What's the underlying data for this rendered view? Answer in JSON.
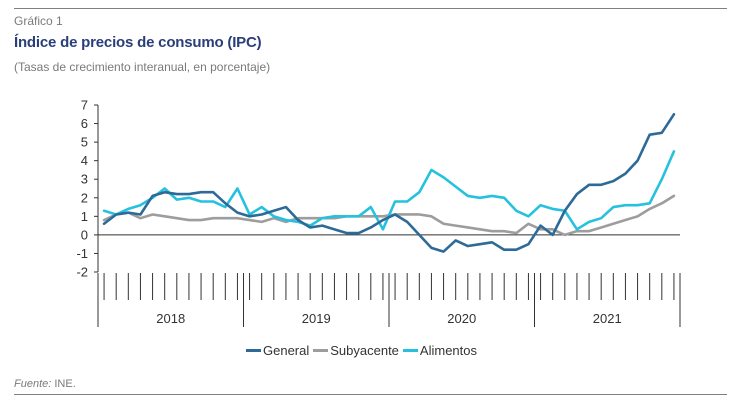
{
  "figure": {
    "label": "Gráfico 1",
    "title": "Índice de precios de consumo (IPC)",
    "subtitle": "(Tasas de crecimiento interanual, en porcentaje)",
    "source_label": "Fuente:",
    "source_text": " INE."
  },
  "colors": {
    "general": "#2e6a97",
    "subyacente": "#9d9d9d",
    "alimentos": "#25c1de",
    "axis": "#333333"
  },
  "chart_data": {
    "type": "line",
    "title": "Índice de precios de consumo (IPC)",
    "xlabel": "",
    "ylabel": "",
    "ylim": [
      -2,
      7
    ],
    "yticks": [
      "7",
      "6",
      "5",
      "4",
      "3",
      "2",
      "1",
      "0",
      "-1",
      "-2"
    ],
    "years": [
      "2018",
      "2019",
      "2020",
      "2021"
    ],
    "grid": false,
    "legend_position": "bottom",
    "months_per_year": 12,
    "series": [
      {
        "key": "general",
        "name": "General",
        "values": [
          0.6,
          1.1,
          1.2,
          1.1,
          2.1,
          2.3,
          2.2,
          2.2,
          2.3,
          2.3,
          1.7,
          1.2,
          1.0,
          1.1,
          1.3,
          1.5,
          0.8,
          0.4,
          0.5,
          0.3,
          0.1,
          0.1,
          0.4,
          0.8,
          1.1,
          0.7,
          0.0,
          -0.7,
          -0.9,
          -0.3,
          -0.6,
          -0.5,
          -0.4,
          -0.8,
          -0.8,
          -0.5,
          0.5,
          0.0,
          1.3,
          2.2,
          2.7,
          2.7,
          2.9,
          3.3,
          4.0,
          5.4,
          5.5,
          6.5
        ]
      },
      {
        "key": "subyacente",
        "name": "Subyacente",
        "values": [
          0.8,
          1.1,
          1.2,
          0.9,
          1.1,
          1.0,
          0.9,
          0.8,
          0.8,
          0.9,
          0.9,
          0.9,
          0.8,
          0.7,
          0.9,
          0.7,
          0.9,
          0.9,
          0.9,
          0.9,
          1.0,
          1.0,
          1.0,
          1.0,
          1.1,
          1.1,
          1.1,
          1.0,
          0.6,
          0.5,
          0.4,
          0.3,
          0.2,
          0.2,
          0.1,
          0.6,
          0.3,
          0.3,
          0.0,
          0.2,
          0.2,
          0.4,
          0.6,
          0.8,
          1.0,
          1.4,
          1.7,
          2.1
        ]
      },
      {
        "key": "alimentos",
        "name": "Alimentos",
        "values": [
          1.3,
          1.1,
          1.4,
          1.6,
          2.0,
          2.5,
          1.9,
          2.0,
          1.8,
          1.8,
          1.5,
          2.5,
          1.1,
          1.5,
          1.0,
          0.8,
          0.7,
          0.5,
          0.9,
          1.0,
          1.0,
          1.0,
          1.5,
          0.3,
          1.8,
          1.8,
          2.3,
          3.5,
          3.1,
          2.6,
          2.1,
          2.0,
          2.1,
          2.0,
          1.3,
          1.0,
          1.6,
          1.4,
          1.3,
          0.3,
          0.7,
          0.9,
          1.5,
          1.6,
          1.6,
          1.7,
          3.0,
          4.5
        ]
      }
    ]
  }
}
